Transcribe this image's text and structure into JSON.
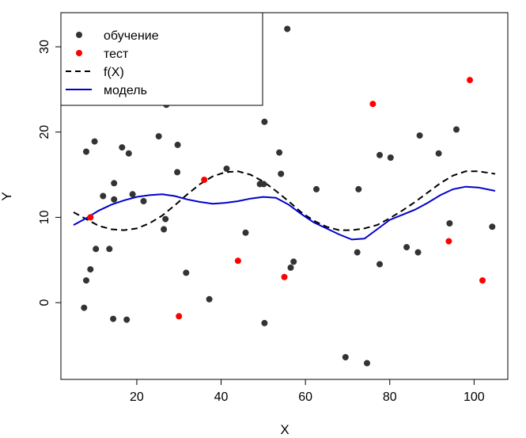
{
  "chart_data": {
    "type": "scatter",
    "title": "",
    "xlabel": "X",
    "ylabel": "Y",
    "xlim": [
      2,
      108
    ],
    "ylim": [
      -9,
      34
    ],
    "xticks": [
      20,
      40,
      60,
      80,
      100
    ],
    "yticks": [
      0,
      10,
      20,
      30
    ],
    "legend": {
      "position": "top-left",
      "items": [
        {
          "label": "обучение",
          "kind": "point",
          "color": "#333333"
        },
        {
          "label": "тест",
          "kind": "point",
          "color": "#ff0000"
        },
        {
          "label": "f(X)",
          "kind": "dashed-line",
          "color": "#000000"
        },
        {
          "label": "модель",
          "kind": "line",
          "color": "#0000cc"
        }
      ]
    },
    "series": [
      {
        "name": "обучение",
        "kind": "points",
        "color": "#333333",
        "x": [
          8,
          8,
          7.5,
          9,
          10,
          10.3,
          12,
          13.5,
          14.6,
          14.6,
          14.4,
          16.5,
          17.6,
          18.1,
          19,
          21.6,
          25.2,
          26.4,
          26.8,
          27,
          29.6,
          29.7,
          31.7,
          37.2,
          41.3,
          45.8,
          49.2,
          50.1,
          50.3,
          50.3,
          53.8,
          54.2,
          55.7,
          56.5,
          57.2,
          62.6,
          69.5,
          72.3,
          72.6,
          74.6,
          77.6,
          77.6,
          80.2,
          84,
          86.7,
          87.1,
          91.6,
          94.2,
          95.8,
          104.3
        ],
        "y": [
          17.7,
          2.6,
          -0.6,
          3.9,
          18.9,
          6.3,
          12.5,
          6.3,
          14,
          12.1,
          -1.9,
          18.2,
          -2,
          17.5,
          12.7,
          11.9,
          19.5,
          8.6,
          9.8,
          23.2,
          15.3,
          18.5,
          3.5,
          0.4,
          15.7,
          8.2,
          13.9,
          13.9,
          21.2,
          -2.4,
          17.6,
          15.1,
          32.1,
          4.1,
          4.8,
          13.3,
          -6.4,
          5.9,
          13.3,
          -7.1,
          4.5,
          17.3,
          17,
          6.5,
          5.9,
          19.6,
          17.5,
          9.3,
          20.3,
          8.9
        ]
      },
      {
        "name": "тест",
        "kind": "points",
        "color": "#ff0000",
        "x": [
          9,
          30,
          36,
          44,
          55,
          76,
          94,
          99,
          102
        ],
        "y": [
          10,
          -1.6,
          14.4,
          4.9,
          3,
          23.3,
          7.2,
          26.1,
          2.6
        ]
      },
      {
        "name": "f(X)",
        "kind": "dashed-line",
        "color": "#000000",
        "x": [
          5,
          8,
          11,
          14,
          17,
          20,
          23,
          26,
          29,
          32,
          35,
          38,
          41,
          44,
          47,
          50,
          53,
          56,
          59,
          62,
          65,
          68,
          71,
          74,
          77,
          80,
          83,
          86,
          89,
          92,
          95,
          98,
          101,
          105
        ],
        "y": [
          10.6,
          9.8,
          9.0,
          8.6,
          8.5,
          8.7,
          9.3,
          10.2,
          11.4,
          12.7,
          13.9,
          14.8,
          15.3,
          15.4,
          15.0,
          14.2,
          13.1,
          11.9,
          10.6,
          9.6,
          8.9,
          8.5,
          8.5,
          8.7,
          9.1,
          9.9,
          10.8,
          11.8,
          12.9,
          14.0,
          14.9,
          15.4,
          15.4,
          15.1
        ]
      },
      {
        "name": "модель",
        "kind": "line",
        "color": "#0000cc",
        "x": [
          5,
          8,
          11,
          14,
          17,
          20,
          23,
          26,
          29,
          32,
          35,
          38,
          41,
          44,
          47,
          50,
          53,
          56,
          59,
          62,
          65,
          68,
          71,
          74,
          77,
          80,
          83,
          86,
          89,
          92,
          95,
          98,
          101,
          105
        ],
        "y": [
          9.1,
          9.9,
          10.8,
          11.5,
          12.0,
          12.4,
          12.6,
          12.7,
          12.5,
          12.1,
          11.8,
          11.6,
          11.7,
          11.9,
          12.2,
          12.4,
          12.3,
          11.5,
          10.4,
          9.4,
          8.7,
          8.0,
          7.4,
          7.5,
          8.6,
          9.7,
          10.3,
          10.9,
          11.7,
          12.6,
          13.3,
          13.6,
          13.5,
          13.1
        ]
      }
    ]
  }
}
